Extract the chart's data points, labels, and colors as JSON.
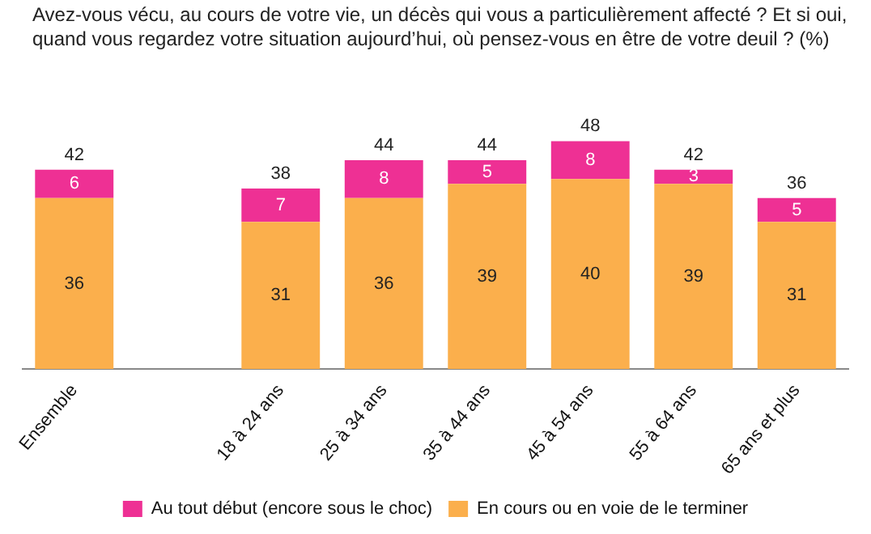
{
  "chart_data": {
    "type": "bar",
    "title": "Avez-vous vécu, au cours de votre vie, un décès qui vous a particulièrement affecté ? Et si oui, quand vous regardez votre situation aujourd’hui, où pensez-vous en être de votre deuil ? (%)",
    "categories": [
      "Ensemble",
      null,
      "18 à 24 ans",
      "25 à 34 ans",
      "35 à 44 ans",
      "45 à 54 ans",
      "55 à 64 ans",
      "65 ans et plus"
    ],
    "stacked": true,
    "data_labels": true,
    "legend": "bottom",
    "grid": false,
    "series": [
      {
        "name": "En cours ou en voie de le terminer",
        "color": "#fbaf4c",
        "values": [
          36,
          null,
          31,
          36,
          39,
          40,
          39,
          31
        ]
      },
      {
        "name": "Au tout début (encore sous le choc)",
        "color": "#ee3094",
        "values": [
          6,
          null,
          7,
          8,
          5,
          8,
          3,
          5
        ]
      }
    ],
    "totals": [
      "42",
      null,
      "38",
      "44",
      "44",
      "48",
      "42",
      "36"
    ]
  }
}
